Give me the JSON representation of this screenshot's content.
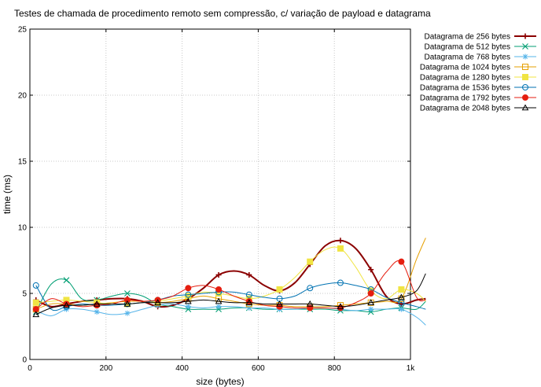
{
  "chart_data": {
    "type": "line",
    "title": "Testes de chamada de procedimento remoto sem compressão, c/ variação de payload e datagrama",
    "xlabel": "size (bytes)",
    "ylabel": "time (ms)",
    "xlim": [
      0,
      1000
    ],
    "ylim": [
      0,
      25
    ],
    "xticks": [
      0,
      200,
      400,
      600,
      800,
      1000
    ],
    "xtick_labels": [
      "0",
      "200",
      "400",
      "600",
      "800",
      "1k"
    ],
    "yticks": [
      0,
      5,
      10,
      15,
      20,
      25
    ],
    "ytick_labels": [
      "0",
      "5",
      "10",
      "15",
      "20",
      "25"
    ],
    "grid": true,
    "legend_position": "top-right, outside plot",
    "series": [
      {
        "name": "Datagrama de 256 bytes",
        "color": "#8b0000",
        "marker": "plus",
        "x": [
          16,
          56,
          96,
          136,
          176,
          216,
          256,
          296,
          336,
          376,
          416,
          456,
          496,
          536,
          576,
          616,
          656,
          696,
          736,
          776,
          816,
          856,
          896,
          936,
          976,
          1016,
          1040
        ],
        "y": [
          4.5,
          4.0,
          4.2,
          4.4,
          4.5,
          4.6,
          4.6,
          4.4,
          4.0,
          4.1,
          4.6,
          5.4,
          6.4,
          6.7,
          6.4,
          5.6,
          5.2,
          5.8,
          7.2,
          8.6,
          9.0,
          8.4,
          6.8,
          4.8,
          4.2,
          4.5,
          4.6
        ]
      },
      {
        "name": "Datagrama de 512 bytes",
        "color": "#009e73",
        "marker": "x",
        "x": [
          16,
          56,
          96,
          136,
          176,
          216,
          256,
          296,
          336,
          376,
          416,
          456,
          496,
          536,
          576,
          616,
          656,
          696,
          736,
          776,
          816,
          856,
          896,
          936,
          976,
          1016,
          1040
        ],
        "y": [
          3.6,
          5.7,
          6.0,
          4.6,
          4.5,
          4.8,
          5.0,
          4.8,
          4.2,
          4.0,
          3.8,
          3.8,
          3.8,
          3.9,
          3.9,
          3.8,
          3.8,
          3.8,
          3.8,
          3.8,
          3.7,
          3.7,
          3.6,
          3.8,
          3.9,
          3.8,
          4.4
        ]
      },
      {
        "name": "Datagrama de 768 bytes",
        "color": "#56b4e9",
        "marker": "star",
        "x": [
          16,
          56,
          96,
          136,
          176,
          216,
          256,
          296,
          336,
          376,
          416,
          456,
          496,
          536,
          576,
          616,
          656,
          696,
          736,
          776,
          816,
          856,
          896,
          936,
          976,
          1016,
          1040
        ],
        "y": [
          3.7,
          3.3,
          3.8,
          3.8,
          3.6,
          3.4,
          3.5,
          3.8,
          4.1,
          4.2,
          4.0,
          3.9,
          4.0,
          4.0,
          3.9,
          3.9,
          3.8,
          3.8,
          3.9,
          3.9,
          3.8,
          3.7,
          3.8,
          3.8,
          3.8,
          3.2,
          2.6
        ]
      },
      {
        "name": "Datagrama de 1024 bytes",
        "color": "#e69f00",
        "marker": "square-open",
        "x": [
          16,
          56,
          96,
          136,
          176,
          216,
          256,
          296,
          336,
          376,
          416,
          456,
          496,
          536,
          576,
          616,
          656,
          696,
          736,
          776,
          816,
          856,
          896,
          936,
          976,
          1016,
          1040
        ],
        "y": [
          3.8,
          4.2,
          4.2,
          4.1,
          4.2,
          4.3,
          4.4,
          4.4,
          4.3,
          4.4,
          4.6,
          4.8,
          4.6,
          4.4,
          4.2,
          4.1,
          4.1,
          4.0,
          4.0,
          4.0,
          4.1,
          4.2,
          4.3,
          4.4,
          4.6,
          7.6,
          9.2
        ]
      },
      {
        "name": "Datagrama de 1280 bytes",
        "color": "#f0e442",
        "marker": "square-filled",
        "x": [
          16,
          56,
          96,
          136,
          176,
          216,
          256,
          296,
          336,
          376,
          416,
          456,
          496,
          536,
          576,
          616,
          656,
          696,
          736,
          776,
          816,
          856,
          896,
          936,
          976,
          1016,
          1040
        ],
        "y": [
          4.3,
          4.4,
          4.5,
          4.4,
          4.3,
          4.2,
          4.2,
          4.3,
          4.4,
          4.6,
          4.8,
          5.1,
          5.0,
          4.8,
          4.6,
          4.8,
          5.3,
          6.2,
          7.4,
          8.3,
          8.4,
          7.0,
          5.2,
          4.6,
          5.3,
          5.0,
          4.4
        ]
      },
      {
        "name": "Datagrama de 1536 bytes",
        "color": "#0072b2",
        "marker": "circle-open",
        "x": [
          16,
          56,
          96,
          136,
          176,
          216,
          256,
          296,
          336,
          376,
          416,
          456,
          496,
          536,
          576,
          616,
          656,
          696,
          736,
          776,
          816,
          856,
          896,
          936,
          976,
          1016,
          1040
        ],
        "y": [
          5.6,
          3.8,
          4.0,
          4.2,
          4.1,
          4.1,
          4.2,
          4.3,
          4.5,
          4.8,
          4.9,
          5.0,
          5.1,
          5.1,
          4.9,
          4.7,
          4.6,
          4.8,
          5.4,
          5.7,
          5.8,
          5.6,
          5.3,
          4.7,
          4.3,
          4.0,
          3.8
        ]
      },
      {
        "name": "Datagrama de 1792 bytes",
        "color": "#e51e10",
        "marker": "circle-filled",
        "x": [
          16,
          56,
          96,
          136,
          176,
          216,
          256,
          296,
          336,
          376,
          416,
          456,
          496,
          536,
          576,
          616,
          656,
          696,
          736,
          776,
          816,
          856,
          896,
          936,
          976,
          1016,
          1040
        ],
        "y": [
          3.8,
          4.6,
          4.2,
          4.0,
          4.1,
          4.2,
          4.5,
          4.4,
          4.5,
          4.8,
          5.4,
          5.6,
          5.3,
          4.8,
          4.4,
          4.1,
          4.0,
          3.9,
          3.9,
          3.9,
          3.9,
          4.3,
          5.0,
          6.6,
          7.4,
          4.7,
          4.5
        ]
      },
      {
        "name": "Datagrama de 2048 bytes",
        "color": "#000000",
        "marker": "triangle-open",
        "x": [
          16,
          56,
          96,
          136,
          176,
          216,
          256,
          296,
          336,
          376,
          416,
          456,
          496,
          536,
          576,
          616,
          656,
          696,
          736,
          776,
          816,
          856,
          896,
          936,
          976,
          1016,
          1040
        ],
        "y": [
          3.4,
          3.9,
          4.1,
          4.1,
          4.2,
          4.2,
          4.2,
          4.3,
          4.3,
          4.3,
          4.4,
          4.5,
          4.4,
          4.3,
          4.3,
          4.2,
          4.2,
          4.2,
          4.2,
          4.1,
          4.0,
          4.1,
          4.3,
          4.5,
          4.7,
          5.2,
          6.5
        ]
      }
    ]
  }
}
